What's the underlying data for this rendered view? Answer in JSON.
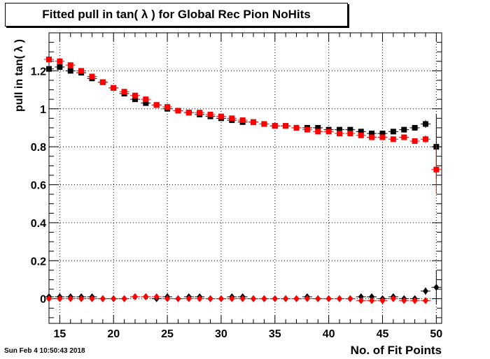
{
  "title": "Fitted pull in tan( λ ) for Global Rec Pion NoHits",
  "timestamp": "Sun Feb  4 10:50:43 2018",
  "chart_data": {
    "type": "scatter",
    "title": "Fitted pull in tan( λ ) for Global Rec Pion NoHits",
    "xlabel": "No. of Fit Points",
    "ylabel": "pull in tan( λ )",
    "xlim": [
      14,
      50.5
    ],
    "ylim": [
      -0.13,
      1.4
    ],
    "x_ticks": [
      15,
      20,
      25,
      30,
      35,
      40,
      45,
      50
    ],
    "y_ticks": [
      0,
      0.2,
      0.4,
      0.6,
      0.8,
      1,
      1.2
    ],
    "y_tick_labels": [
      "0",
      "0.2",
      "0.4",
      "0.6",
      "0.8",
      "1",
      "1.2"
    ],
    "grid": true,
    "series": [
      {
        "marker": "square",
        "color": "#000000",
        "x": [
          14,
          15,
          16,
          17,
          18,
          19,
          20,
          21,
          22,
          23,
          24,
          25,
          26,
          27,
          28,
          29,
          30,
          31,
          32,
          33,
          34,
          35,
          36,
          37,
          38,
          39,
          40,
          41,
          42,
          43,
          44,
          45,
          46,
          47,
          48,
          49,
          50
        ],
        "y": [
          1.21,
          1.22,
          1.2,
          1.19,
          1.16,
          1.14,
          1.11,
          1.08,
          1.05,
          1.03,
          1.02,
          1.0,
          0.99,
          0.98,
          0.97,
          0.96,
          0.95,
          0.94,
          0.93,
          0.93,
          0.92,
          0.91,
          0.91,
          0.9,
          0.9,
          0.9,
          0.89,
          0.89,
          0.89,
          0.88,
          0.87,
          0.87,
          0.88,
          0.89,
          0.9,
          0.92,
          0.8
        ],
        "err": [
          0.01,
          0.01,
          0.01,
          0.01,
          0.01,
          0.01,
          0.01,
          0.01,
          0.01,
          0.01,
          0.01,
          0.01,
          0.01,
          0.01,
          0.01,
          0.01,
          0.01,
          0.01,
          0.01,
          0.01,
          0.01,
          0.01,
          0.01,
          0.01,
          0.01,
          0.01,
          0.01,
          0.01,
          0.01,
          0.01,
          0.01,
          0.01,
          0.01,
          0.01,
          0.01,
          0.02,
          0.17
        ]
      },
      {
        "marker": "square",
        "color": "#ff0000",
        "x": [
          14,
          15,
          16,
          17,
          18,
          19,
          20,
          21,
          22,
          23,
          24,
          25,
          26,
          27,
          28,
          29,
          30,
          31,
          32,
          33,
          34,
          35,
          36,
          37,
          38,
          39,
          40,
          41,
          42,
          43,
          44,
          45,
          46,
          47,
          48,
          49,
          50
        ],
        "y": [
          1.26,
          1.25,
          1.23,
          1.2,
          1.17,
          1.14,
          1.11,
          1.09,
          1.07,
          1.05,
          1.02,
          1.01,
          0.99,
          0.98,
          0.98,
          0.97,
          0.96,
          0.95,
          0.94,
          0.93,
          0.92,
          0.91,
          0.91,
          0.9,
          0.89,
          0.88,
          0.88,
          0.87,
          0.87,
          0.86,
          0.85,
          0.85,
          0.84,
          0.85,
          0.83,
          0.84,
          0.68
        ],
        "err": [
          0.01,
          0.01,
          0.01,
          0.01,
          0.01,
          0.01,
          0.01,
          0.01,
          0.01,
          0.01,
          0.01,
          0.01,
          0.01,
          0.01,
          0.01,
          0.01,
          0.01,
          0.01,
          0.01,
          0.01,
          0.01,
          0.01,
          0.01,
          0.01,
          0.01,
          0.01,
          0.01,
          0.01,
          0.01,
          0.01,
          0.01,
          0.01,
          0.01,
          0.01,
          0.01,
          0.02,
          0.13
        ]
      },
      {
        "marker": "diamond",
        "color": "#000000",
        "x": [
          14,
          15,
          16,
          17,
          18,
          19,
          20,
          21,
          22,
          23,
          24,
          25,
          26,
          27,
          28,
          29,
          30,
          31,
          32,
          33,
          34,
          35,
          36,
          37,
          38,
          39,
          40,
          41,
          42,
          43,
          44,
          45,
          46,
          47,
          48,
          49,
          50
        ],
        "y": [
          0.01,
          0.01,
          0.01,
          0.01,
          0.01,
          0.0,
          0.0,
          0.0,
          0.01,
          0.01,
          0.0,
          0.01,
          0.0,
          0.01,
          0.01,
          0.0,
          0.0,
          0.01,
          0.01,
          0.0,
          0.0,
          0.0,
          0.0,
          0.0,
          0.01,
          0.0,
          0.0,
          0.0,
          0.0,
          0.01,
          0.01,
          0.0,
          0.01,
          0.0,
          0.0,
          0.04,
          0.06
        ],
        "err": [
          0.01,
          0.01,
          0.01,
          0.01,
          0.01,
          0.01,
          0.01,
          0.01,
          0.01,
          0.01,
          0.01,
          0.01,
          0.01,
          0.01,
          0.01,
          0.01,
          0.01,
          0.01,
          0.01,
          0.01,
          0.01,
          0.01,
          0.01,
          0.01,
          0.01,
          0.01,
          0.01,
          0.01,
          0.01,
          0.01,
          0.01,
          0.01,
          0.01,
          0.01,
          0.01,
          0.02,
          0.09
        ]
      },
      {
        "marker": "diamond",
        "color": "#ff0000",
        "x": [
          14,
          15,
          16,
          17,
          18,
          19,
          20,
          21,
          22,
          23,
          24,
          25,
          26,
          27,
          28,
          29,
          30,
          31,
          32,
          33,
          34,
          35,
          36,
          37,
          38,
          39,
          40,
          41,
          42,
          43,
          44,
          45,
          46,
          47,
          48,
          49
        ],
        "y": [
          0.0,
          0.0,
          0.0,
          0.0,
          0.0,
          0.0,
          0.0,
          0.0,
          0.01,
          0.01,
          0.01,
          0.0,
          0.0,
          0.0,
          0.0,
          0.0,
          0.0,
          0.0,
          0.0,
          0.0,
          0.0,
          0.0,
          0.0,
          0.0,
          0.0,
          0.0,
          0.0,
          0.0,
          0.0,
          -0.01,
          -0.01,
          -0.01,
          0.0,
          -0.01,
          -0.01,
          -0.01
        ],
        "err": [
          0.01,
          0.01,
          0.01,
          0.01,
          0.01,
          0.01,
          0.01,
          0.01,
          0.01,
          0.01,
          0.01,
          0.01,
          0.01,
          0.01,
          0.01,
          0.01,
          0.01,
          0.01,
          0.01,
          0.01,
          0.01,
          0.01,
          0.01,
          0.01,
          0.01,
          0.01,
          0.01,
          0.01,
          0.01,
          0.01,
          0.01,
          0.01,
          0.01,
          0.01,
          0.01,
          0.01
        ]
      }
    ]
  }
}
